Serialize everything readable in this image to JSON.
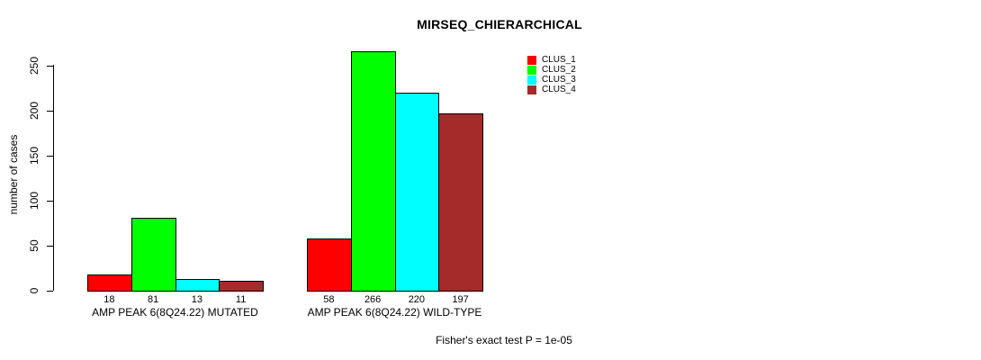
{
  "title": "MIRSEQ_CHIERARCHICAL",
  "footnote": "Fisher's exact test P = 1e-05",
  "chart_data": {
    "type": "bar",
    "title": "MIRSEQ_CHIERARCHICAL",
    "xlabel": "",
    "ylabel": "number of cases",
    "ylim": [
      0,
      250
    ],
    "yticks": [
      0,
      50,
      100,
      150,
      200,
      250
    ],
    "grid": false,
    "legend_position": "top-right",
    "categories": [
      "AMP PEAK 6(8Q24.22) MUTATED",
      "AMP PEAK 6(8Q24.22) WILD-TYPE"
    ],
    "series": [
      {
        "name": "CLUS_1",
        "color": "#FF0000",
        "values": [
          18,
          58
        ]
      },
      {
        "name": "CLUS_2",
        "color": "#00FF00",
        "values": [
          81,
          266
        ]
      },
      {
        "name": "CLUS_3",
        "color": "#00FFFF",
        "values": [
          13,
          220
        ]
      },
      {
        "name": "CLUS_4",
        "color": "#A52A2A",
        "values": [
          11,
          197
        ]
      }
    ],
    "bar_value_labels": [
      [
        18,
        81,
        13,
        11
      ],
      [
        58,
        266,
        220,
        197
      ]
    ],
    "annotation": "Fisher's exact test P = 1e-05"
  }
}
